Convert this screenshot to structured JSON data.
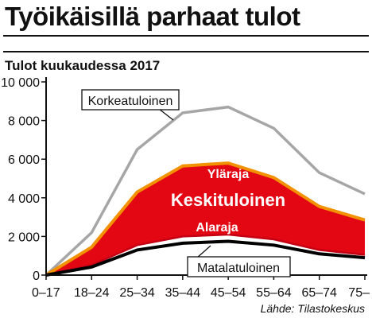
{
  "title": "Työikäisillä parhaat tulot",
  "subtitle": "Tulot kuukaudessa 2017",
  "source": "Lähde: Tilastokeskus",
  "colors": {
    "high_line": "#a6a6a6",
    "band_fill": "#e30613",
    "band_edge": "#f39200",
    "lower_edge": "#c40012",
    "low_line": "#000000",
    "axis": "#111111"
  },
  "chart_data": {
    "type": "line",
    "title": "Työikäisillä parhaat tulot",
    "subtitle": "Tulot kuukaudessa 2017",
    "categories": [
      "0–17",
      "18–24",
      "25–34",
      "35–44",
      "45–54",
      "55–64",
      "65–74",
      "75–"
    ],
    "ylim": [
      0,
      10000
    ],
    "yticks": [
      0,
      2000,
      4000,
      6000,
      8000,
      10000
    ],
    "ytick_labels": [
      "0",
      "2 000",
      "4 000",
      "6 000",
      "8 000",
      "10 000"
    ],
    "grid": false,
    "series": [
      {
        "name": "Korkeatuloinen",
        "values": [
          0,
          2200,
          6500,
          8400,
          8700,
          7600,
          5300,
          4200
        ]
      },
      {
        "name": "Yläraja",
        "values": [
          0,
          1450,
          4300,
          5650,
          5800,
          5050,
          3550,
          2850
        ]
      },
      {
        "name": "Alaraja",
        "values": [
          0,
          520,
          1550,
          2000,
          2100,
          1850,
          1300,
          1050
        ]
      },
      {
        "name": "Matalatuloinen",
        "values": [
          0,
          420,
          1300,
          1650,
          1750,
          1550,
          1100,
          900
        ]
      }
    ],
    "band": {
      "name": "Keskituloinen",
      "upper": "Yläraja",
      "lower": "Alaraja"
    }
  }
}
